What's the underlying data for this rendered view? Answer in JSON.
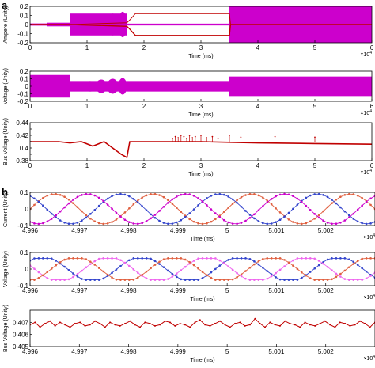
{
  "panel_letters": [
    "a",
    "b"
  ],
  "colors": {
    "red": "#c00000",
    "magenta": "#cc00cc",
    "blue": "#3344cc",
    "pink": "#ee66ee",
    "orange": "#e06040",
    "axis": "#000000"
  },
  "chart_data": [
    {
      "type": "line",
      "panel": "a",
      "ylabel": "Ampere (Unity)",
      "xlabel": "Time (ms)",
      "x_multiplier": "×10",
      "x_multiplier_exp": "4",
      "xlim": [
        0,
        6
      ],
      "ylim": [
        -0.2,
        0.2
      ],
      "xticks": [
        0,
        1,
        2,
        3,
        4,
        5,
        6
      ],
      "xtick_labels": [
        "0",
        "1",
        "2",
        "3",
        "4",
        "5",
        "6"
      ],
      "yticks": [
        -0.2,
        -0.1,
        0,
        0.1,
        0.2
      ],
      "ytick_labels": [
        "-0.2",
        "-0.1",
        "0",
        "0.1",
        "0.2"
      ],
      "series": [
        {
          "color": "magenta",
          "bands": [
            [
              0,
              0.3,
              0.012
            ],
            [
              0.3,
              0.7,
              0.02
            ],
            [
              0.7,
              1.7,
              0.12
            ],
            [
              1.7,
              3.5,
              0.01
            ],
            [
              3.5,
              6.0,
              0.2
            ]
          ]
        },
        {
          "color": "red",
          "x": [
            0,
            0.7,
            0.7,
            1.7,
            1.75,
            1.85,
            3.5,
            3.52,
            6.0
          ],
          "y": [
            0.0,
            0.0,
            0.0,
            0.02,
            0.05,
            0.12,
            0.12,
            0.0,
            0.0
          ]
        }
      ]
    },
    {
      "type": "line",
      "panel": "a",
      "ylabel": "Voltage (Unity)",
      "xlabel": "Time (ms)",
      "x_multiplier": "×10",
      "x_multiplier_exp": "4",
      "xlim": [
        0,
        6
      ],
      "ylim": [
        -0.2,
        0.2
      ],
      "xticks": [
        0,
        1,
        2,
        3,
        4,
        5,
        6
      ],
      "xtick_labels": [
        "0",
        "1",
        "2",
        "3",
        "4",
        "5",
        "6"
      ],
      "yticks": [
        -0.2,
        -0.1,
        0,
        0.1,
        0.2
      ],
      "ytick_labels": [
        "-0.2",
        "-0.1",
        "0",
        "0.1",
        "0.2"
      ],
      "series": [
        {
          "color": "magenta",
          "bands": [
            [
              0,
              0.7,
              0.15
            ],
            [
              0.7,
              1.7,
              0.07
            ],
            [
              1.7,
              3.5,
              0.07
            ],
            [
              3.5,
              6.0,
              0.13
            ]
          ]
        }
      ]
    },
    {
      "type": "line",
      "panel": "a",
      "ylabel": "Bus Voltage (Unity)",
      "xlabel": "Time (ms)",
      "x_multiplier": "×10",
      "x_multiplier_exp": "4",
      "xlim": [
        0,
        6
      ],
      "ylim": [
        0.38,
        0.44
      ],
      "xticks": [
        0,
        1,
        2,
        3,
        4,
        5,
        6
      ],
      "xtick_labels": [
        "0",
        "1",
        "2",
        "3",
        "4",
        "5",
        "6"
      ],
      "yticks": [
        0.38,
        0.39,
        0.4,
        0.41,
        0.42,
        0.43,
        0.44
      ],
      "ytick_labels": [
        "0.38",
        "",
        "0.4",
        "",
        "0.42",
        "",
        "0.44"
      ],
      "series": [
        {
          "color": "red",
          "x": [
            0,
            0.5,
            0.7,
            0.9,
            1.1,
            1.3,
            1.45,
            1.6,
            1.7,
            1.75,
            2.0,
            2.5,
            3.0,
            3.5,
            4.0,
            5.0,
            6.0
          ],
          "y": [
            0.41,
            0.41,
            0.408,
            0.41,
            0.403,
            0.41,
            0.4,
            0.39,
            0.385,
            0.41,
            0.41,
            0.41,
            0.41,
            0.409,
            0.408,
            0.407,
            0.406
          ]
        }
      ],
      "spikes_x": [
        2.5,
        2.55,
        2.6,
        2.65,
        2.7,
        2.75,
        2.8,
        2.85,
        2.9,
        3.0,
        3.1,
        3.2,
        3.3,
        3.5,
        3.7,
        4.3,
        5.0
      ],
      "spikes_y": [
        0.415,
        0.418,
        0.416,
        0.42,
        0.418,
        0.415,
        0.42,
        0.416,
        0.418,
        0.42,
        0.416,
        0.418,
        0.415,
        0.42,
        0.417,
        0.418,
        0.417
      ]
    },
    {
      "type": "line",
      "panel": "b",
      "ylabel": "Current (Unity)",
      "xlabel": "Time (ms)",
      "x_multiplier": "×10",
      "x_multiplier_exp": "4",
      "xlim": [
        4.996,
        5.003
      ],
      "ylim": [
        -0.1,
        0.1
      ],
      "xticks": [
        4.996,
        4.997,
        4.998,
        4.999,
        5.0,
        5.001,
        5.002
      ],
      "xtick_labels": [
        "4.996",
        "4.997",
        "4.998",
        "4.999",
        "5",
        "5.001",
        "5.002"
      ],
      "yticks": [
        -0.1,
        0,
        0.1
      ],
      "ytick_labels": [
        "-0.1",
        "0",
        "0.1"
      ],
      "sine": {
        "amplitude": 0.09,
        "period": 0.002,
        "n": 80,
        "phases": [
          {
            "color": "orange",
            "offset": 0
          },
          {
            "color": "blue",
            "offset": 0.3333
          },
          {
            "color": "magenta",
            "offset": 0.6667
          }
        ]
      }
    },
    {
      "type": "line",
      "panel": "b",
      "ylabel": "Voltage (Unity)",
      "xlabel": "Time (ms)",
      "x_multiplier": "×10",
      "x_multiplier_exp": "4",
      "xlim": [
        4.996,
        5.003
      ],
      "ylim": [
        -0.1,
        0.1
      ],
      "xticks": [
        4.996,
        4.997,
        4.998,
        4.999,
        5.0,
        5.001,
        5.002
      ],
      "xtick_labels": [
        "4.996",
        "4.997",
        "4.998",
        "4.999",
        "5",
        "5.001",
        "5.002"
      ],
      "yticks": [
        -0.1,
        0,
        0.1
      ],
      "ytick_labels": [
        "-0.1",
        "0",
        "0.1"
      ],
      "sine": {
        "amplitude": 0.075,
        "period": 0.002,
        "n": 80,
        "clip": 0.065,
        "phases": [
          {
            "color": "blue",
            "offset": 0.12
          },
          {
            "color": "pink",
            "offset": 0.4533
          },
          {
            "color": "orange",
            "offset": 0.7867
          }
        ]
      }
    },
    {
      "type": "line",
      "panel": "b",
      "ylabel": "Bus Voltage (Unity)",
      "xlabel": "Time (ms)",
      "x_multiplier": "×10",
      "x_multiplier_exp": "4",
      "xlim": [
        4.996,
        5.003
      ],
      "ylim": [
        0.405,
        0.408
      ],
      "xticks": [
        4.996,
        4.997,
        4.998,
        4.999,
        5.0,
        5.001,
        5.002
      ],
      "xtick_labels": [
        "4.996",
        "4.997",
        "4.998",
        "4.999",
        "5",
        "5.001",
        "5.002"
      ],
      "yticks": [
        0.405,
        0.406,
        0.407
      ],
      "ytick_labels": [
        "0.405",
        "0.406",
        "0.407"
      ],
      "series": [
        {
          "color": "red",
          "y": [
            0.4068,
            0.407,
            0.4066,
            0.4069,
            0.4071,
            0.4067,
            0.407,
            0.4068,
            0.4066,
            0.4069,
            0.407,
            0.4067,
            0.4068,
            0.4071,
            0.4069,
            0.4066,
            0.407,
            0.4068,
            0.4067,
            0.4069,
            0.4071,
            0.4068,
            0.4066,
            0.407,
            0.4069,
            0.4067,
            0.4068,
            0.4071,
            0.407,
            0.4067,
            0.4069,
            0.4068,
            0.4066,
            0.407,
            0.4072,
            0.4068,
            0.4067,
            0.4069,
            0.4071,
            0.4068,
            0.4066,
            0.4069,
            0.407,
            0.4067,
            0.4068,
            0.4073,
            0.4069,
            0.4066,
            0.407,
            0.4068,
            0.4067,
            0.4071,
            0.4069,
            0.4068,
            0.4066,
            0.407,
            0.4068,
            0.4067,
            0.4069,
            0.4071,
            0.4068,
            0.4066,
            0.407,
            0.4069,
            0.4067,
            0.4068,
            0.4071,
            0.4069,
            0.4066,
            0.407
          ]
        }
      ]
    }
  ]
}
